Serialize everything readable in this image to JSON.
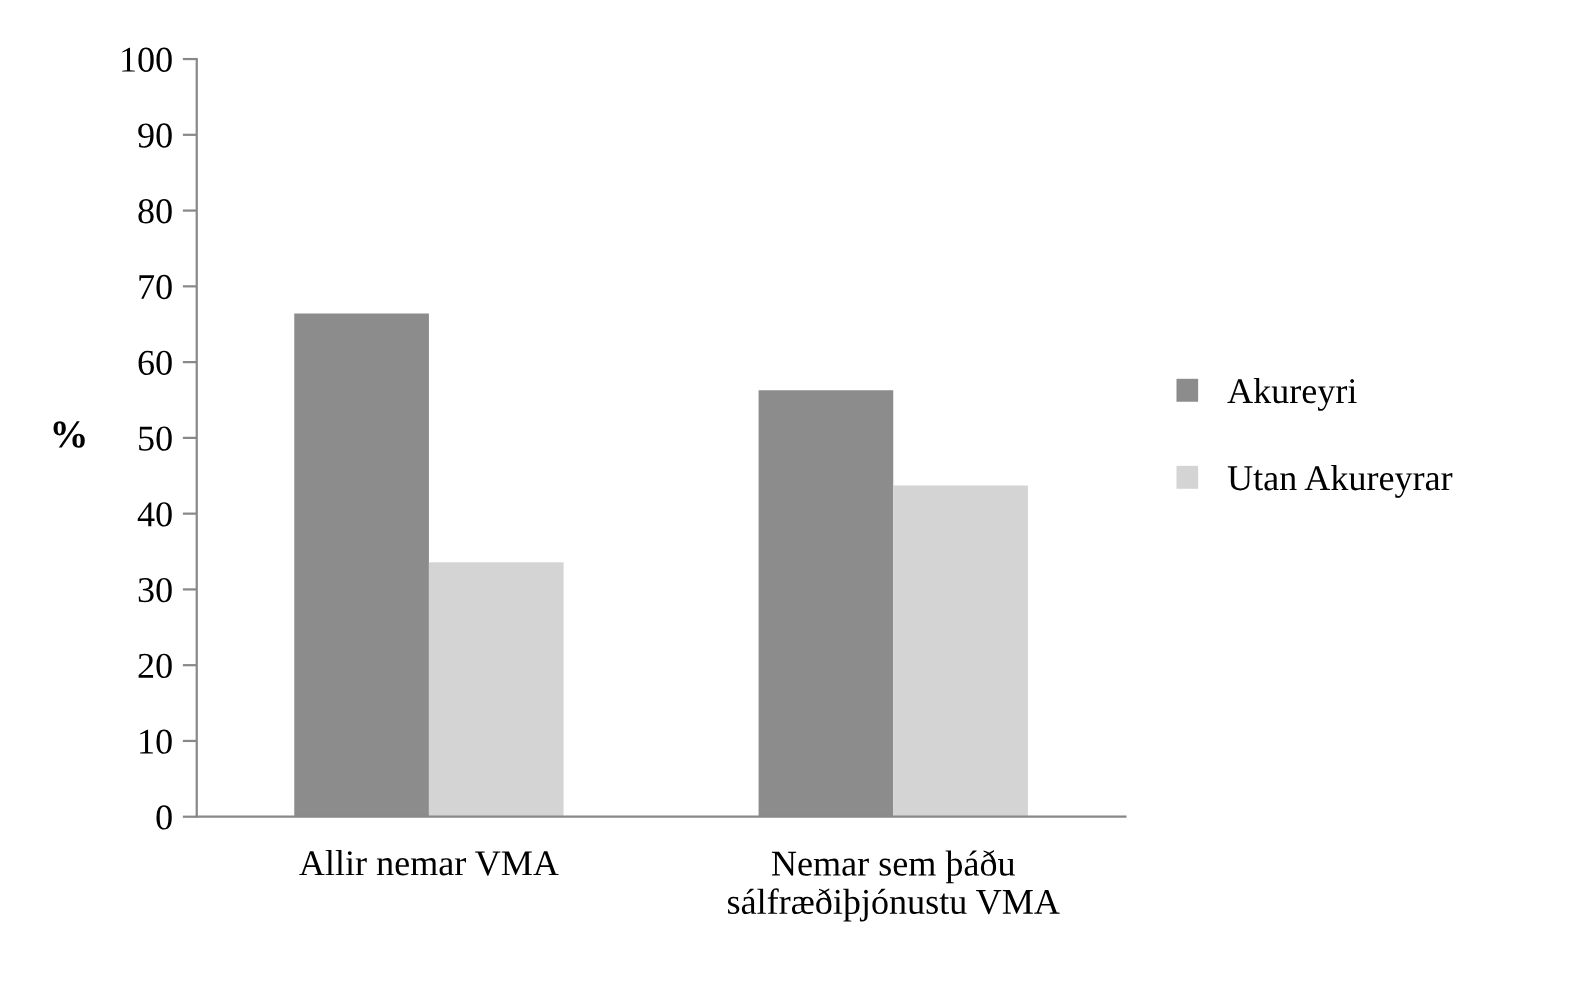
{
  "chart_data": {
    "type": "bar",
    "ylabel": "%",
    "categories": [
      "Allir nemar VMA",
      "Nemar sem þáðu\nsálfræðiþjónustu VMA"
    ],
    "series": [
      {
        "name": "Akureyri",
        "color": "#8c8c8c",
        "values": [
          66.4,
          56.3
        ]
      },
      {
        "name": "Utan Akureyrar",
        "color": "#d4d4d4",
        "values": [
          33.6,
          43.7
        ]
      }
    ],
    "ylim": [
      0,
      100
    ],
    "yticks": [
      0,
      10,
      20,
      30,
      40,
      50,
      60,
      70,
      80,
      90,
      100
    ],
    "grid": false,
    "legend": "right"
  }
}
